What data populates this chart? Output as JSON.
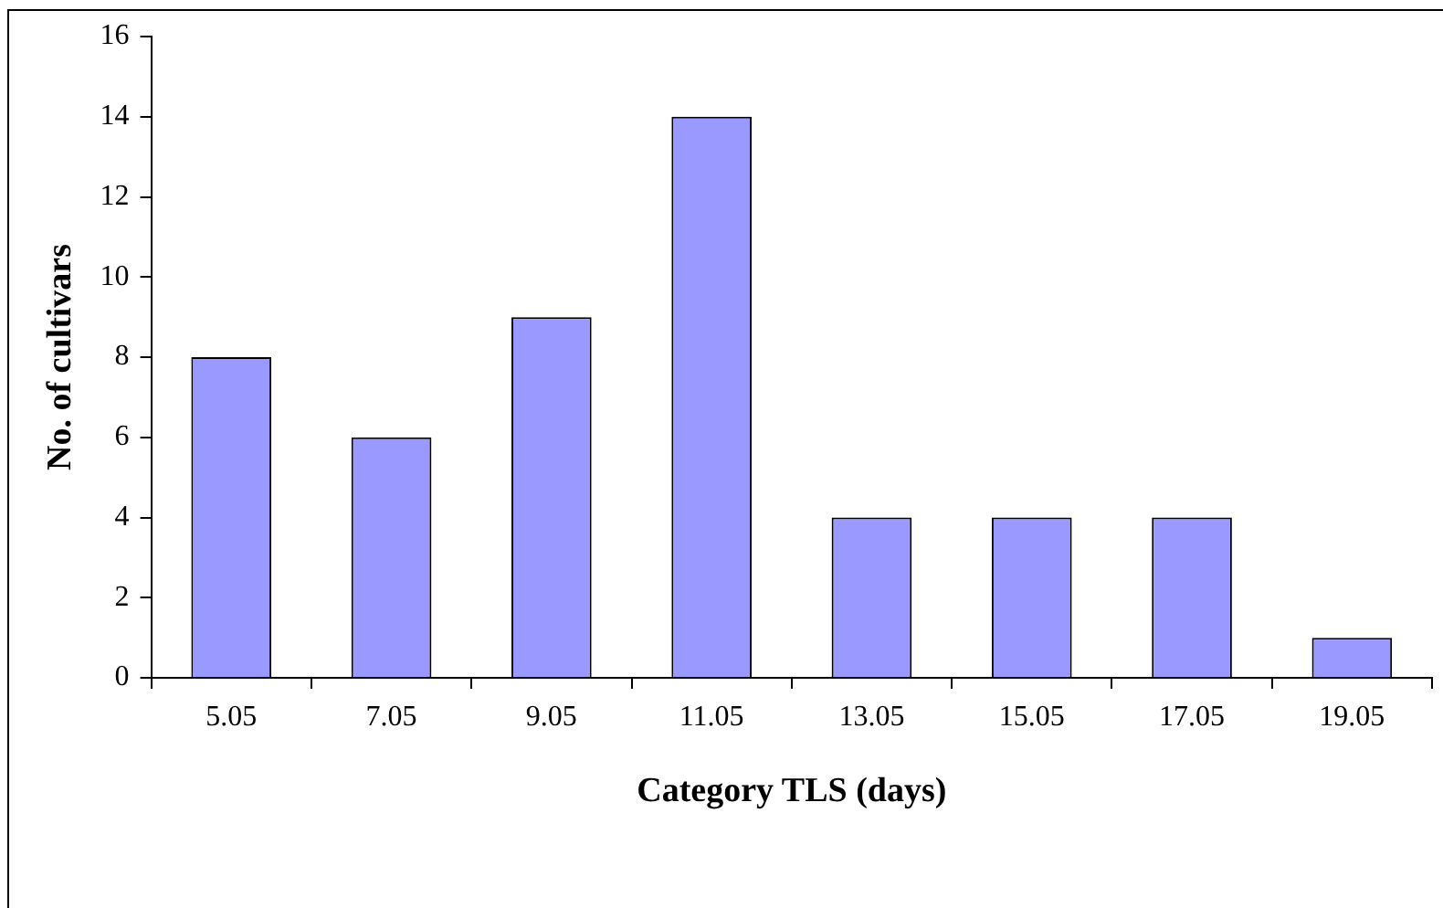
{
  "chart_data": {
    "type": "bar",
    "xlabel": "Category TLS (days)",
    "ylabel": "No. of cultivars",
    "categories": [
      "5.05",
      "7.05",
      "9.05",
      "11.05",
      "13.05",
      "15.05",
      "17.05",
      "19.05"
    ],
    "values": [
      8,
      6,
      9,
      14,
      4,
      4,
      4,
      1
    ],
    "color": "#9999ff",
    "ylim": [
      0,
      16
    ],
    "yticks": [
      0,
      2,
      4,
      6,
      8,
      10,
      12,
      14,
      16
    ],
    "grid": false,
    "legend": false
  }
}
